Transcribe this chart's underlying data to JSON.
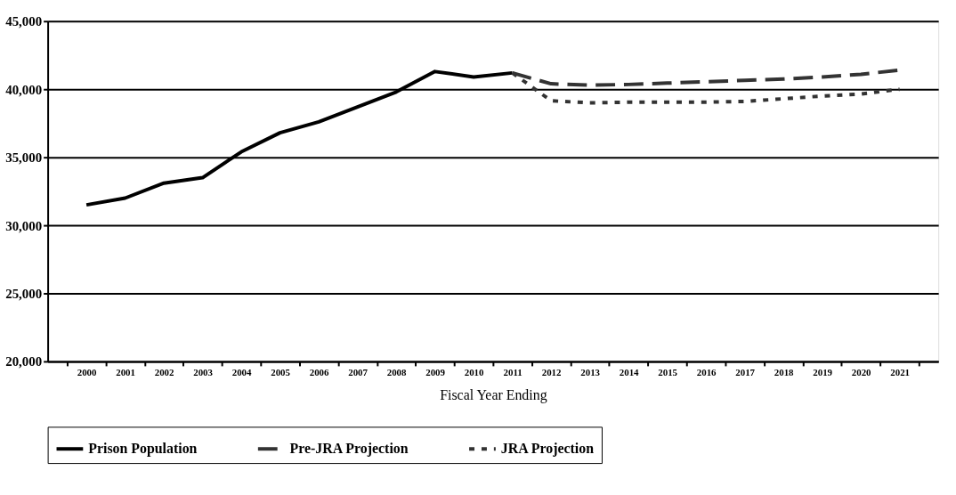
{
  "chart_data": {
    "type": "line",
    "xlabel": "Fiscal Year Ending",
    "categories": [
      "2000",
      "2001",
      "2002",
      "2003",
      "2004",
      "2005",
      "2006",
      "2007",
      "2008",
      "2009",
      "2010",
      "2011",
      "2012",
      "2013",
      "2014",
      "2015",
      "2016",
      "2017",
      "2018",
      "2019",
      "2020",
      "2021"
    ],
    "ylim": [
      20000,
      45000
    ],
    "yticks": [
      {
        "value": 20000,
        "label": "20,000"
      },
      {
        "value": 25000,
        "label": "25,000"
      },
      {
        "value": 30000,
        "label": "30,000"
      },
      {
        "value": 35000,
        "label": "35,000"
      },
      {
        "value": 40000,
        "label": "40,000"
      },
      {
        "value": 45000,
        "label": "45,000"
      }
    ],
    "grid": "y",
    "legend": "bottom",
    "series": [
      {
        "name": "Prison Population",
        "color": "#000000",
        "line_style": "solid",
        "values": [
          31500,
          32000,
          33100,
          33500,
          35400,
          36800,
          37600,
          38700,
          39800,
          41300,
          40900,
          41200,
          null,
          null,
          null,
          null,
          null,
          null,
          null,
          null,
          null,
          null
        ]
      },
      {
        "name": "Pre-JRA Projection",
        "color": "#333333",
        "line_style": "dashed",
        "values": [
          null,
          null,
          null,
          null,
          null,
          null,
          null,
          null,
          null,
          null,
          null,
          41200,
          40400,
          40300,
          40350,
          40450,
          40550,
          40650,
          40750,
          40900,
          41100,
          41400
        ]
      },
      {
        "name": "JRA Projection",
        "color": "#333333",
        "line_style": "dotted",
        "values": [
          null,
          null,
          null,
          null,
          null,
          null,
          null,
          null,
          null,
          null,
          null,
          41200,
          39150,
          39000,
          39050,
          39050,
          39050,
          39100,
          39300,
          39500,
          39650,
          40000
        ]
      }
    ]
  }
}
